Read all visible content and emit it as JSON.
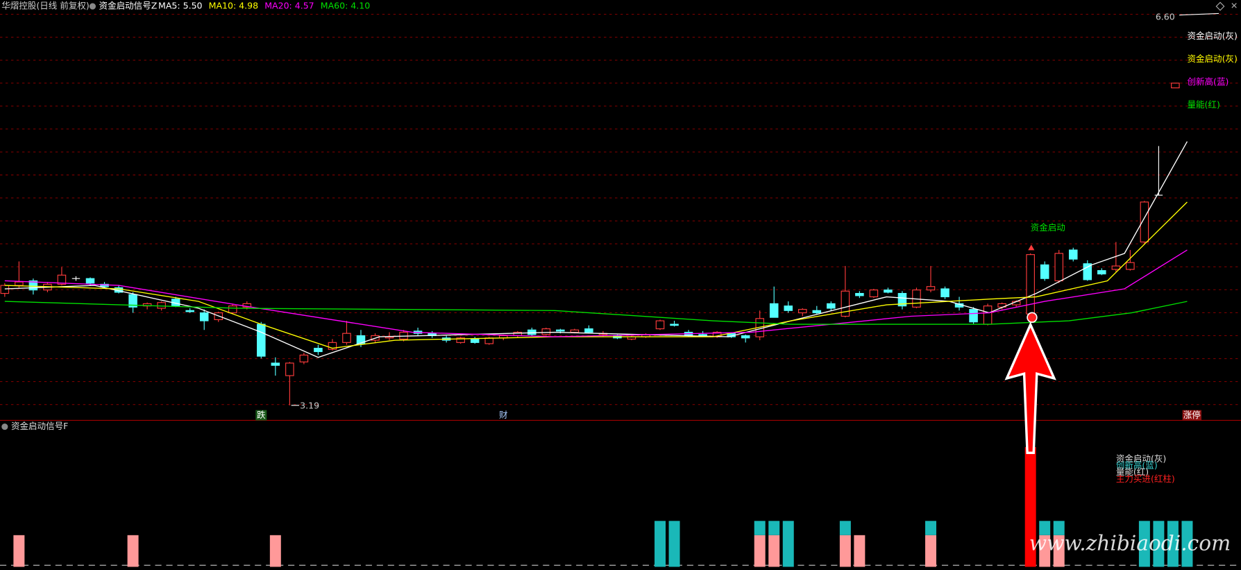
{
  "header": {
    "title": "华熠控股(日线 前复权)"
  },
  "chart_data": [
    {
      "type": "candlestick",
      "title": "资金启动信号Z",
      "ylim": [
        3.19,
        6.6
      ],
      "up_color": "#ff3c3c",
      "down_color": "#54ffff",
      "candles": [
        [
          4.17,
          4.26,
          4.14,
          4.24
        ],
        [
          4.24,
          4.45,
          4.22,
          4.27
        ],
        [
          4.28,
          4.3,
          4.16,
          4.2
        ],
        [
          4.2,
          4.27,
          4.18,
          4.25
        ],
        [
          4.25,
          4.4,
          4.24,
          4.33
        ],
        [
          4.3,
          4.32,
          4.28,
          4.3
        ],
        [
          4.3,
          4.31,
          4.24,
          4.26
        ],
        [
          4.25,
          4.27,
          4.22,
          4.23
        ],
        [
          4.22,
          4.24,
          4.17,
          4.18
        ],
        [
          4.16,
          4.18,
          4.0,
          4.05
        ],
        [
          4.06,
          4.09,
          4.03,
          4.08
        ],
        [
          4.04,
          4.1,
          4.02,
          4.09
        ],
        [
          4.12,
          4.14,
          4.05,
          4.06
        ],
        [
          4.02,
          4.04,
          4.0,
          4.01
        ],
        [
          4.0,
          4.03,
          3.85,
          3.93
        ],
        [
          3.94,
          4.01,
          3.92,
          4.0
        ],
        [
          4.0,
          4.08,
          3.99,
          4.06
        ],
        [
          4.05,
          4.1,
          4.03,
          4.08
        ],
        [
          3.9,
          3.92,
          3.6,
          3.62
        ],
        [
          3.56,
          3.61,
          3.45,
          3.54
        ],
        [
          3.45,
          3.57,
          3.19,
          3.56
        ],
        [
          3.57,
          3.65,
          3.55,
          3.63
        ],
        [
          3.69,
          3.72,
          3.63,
          3.66
        ],
        [
          3.68,
          3.77,
          3.67,
          3.74
        ],
        [
          3.74,
          3.93,
          3.72,
          3.82
        ],
        [
          3.8,
          3.85,
          3.7,
          3.73
        ],
        [
          3.76,
          3.82,
          3.74,
          3.8
        ],
        [
          3.78,
          3.83,
          3.76,
          3.79
        ],
        [
          3.77,
          3.85,
          3.75,
          3.83
        ],
        [
          3.84,
          3.87,
          3.8,
          3.82
        ],
        [
          3.82,
          3.84,
          3.78,
          3.8
        ],
        [
          3.78,
          3.8,
          3.74,
          3.76
        ],
        [
          3.74,
          3.79,
          3.73,
          3.78
        ],
        [
          3.77,
          3.79,
          3.73,
          3.74
        ],
        [
          3.73,
          3.79,
          3.72,
          3.78
        ],
        [
          3.78,
          3.81,
          3.76,
          3.8
        ],
        [
          3.8,
          3.84,
          3.78,
          3.83
        ],
        [
          3.85,
          3.87,
          3.8,
          3.81
        ],
        [
          3.81,
          3.87,
          3.8,
          3.86
        ],
        [
          3.85,
          3.86,
          3.82,
          3.84
        ],
        [
          3.83,
          3.86,
          3.82,
          3.85
        ],
        [
          3.86,
          3.89,
          3.82,
          3.83
        ],
        [
          3.81,
          3.84,
          3.79,
          3.82
        ],
        [
          3.8,
          3.81,
          3.77,
          3.78
        ],
        [
          3.77,
          3.8,
          3.76,
          3.79
        ],
        [
          3.79,
          3.82,
          3.78,
          3.81
        ],
        [
          3.86,
          3.94,
          3.85,
          3.93
        ],
        [
          3.9,
          3.93,
          3.88,
          3.89
        ],
        [
          3.83,
          3.85,
          3.79,
          3.8
        ],
        [
          3.81,
          3.84,
          3.79,
          3.8
        ],
        [
          3.79,
          3.84,
          3.78,
          3.83
        ],
        [
          3.82,
          3.83,
          3.78,
          3.79
        ],
        [
          3.8,
          3.81,
          3.74,
          3.78
        ],
        [
          3.79,
          4.02,
          3.76,
          3.95
        ],
        [
          4.08,
          4.23,
          3.96,
          3.96
        ],
        [
          4.06,
          4.1,
          4.0,
          4.02
        ],
        [
          4.0,
          4.04,
          3.97,
          4.03
        ],
        [
          4.02,
          4.06,
          3.99,
          4.0
        ],
        [
          4.08,
          4.1,
          4.02,
          4.04
        ],
        [
          3.97,
          4.41,
          3.96,
          4.19
        ],
        [
          4.17,
          4.19,
          4.13,
          4.15
        ],
        [
          4.14,
          4.21,
          4.13,
          4.2
        ],
        [
          4.2,
          4.22,
          4.17,
          4.18
        ],
        [
          4.17,
          4.19,
          4.03,
          4.06
        ],
        [
          4.05,
          4.22,
          4.04,
          4.2
        ],
        [
          4.2,
          4.41,
          4.18,
          4.23
        ],
        [
          4.21,
          4.23,
          4.12,
          4.14
        ],
        [
          4.08,
          4.14,
          4.02,
          4.05
        ],
        [
          4.03,
          4.05,
          3.9,
          3.92
        ],
        [
          3.9,
          4.08,
          3.89,
          4.06
        ],
        [
          4.05,
          4.09,
          4.03,
          4.08
        ],
        [
          4.07,
          4.11,
          4.05,
          4.1
        ],
        [
          3.99,
          4.52,
          3.97,
          4.51
        ],
        [
          4.42,
          4.45,
          4.28,
          4.3
        ],
        [
          4.28,
          4.55,
          4.26,
          4.52
        ],
        [
          4.55,
          4.57,
          4.45,
          4.47
        ],
        [
          4.43,
          4.46,
          4.28,
          4.29
        ],
        [
          4.37,
          4.39,
          4.33,
          4.34
        ],
        [
          4.38,
          4.62,
          4.36,
          4.41
        ],
        [
          4.38,
          4.55,
          4.37,
          4.44
        ],
        [
          4.62,
          4.98,
          4.6,
          4.97
        ],
        [
          5.03,
          5.46,
          5.03,
          5.03
        ]
      ],
      "series": [
        {
          "name": "MA5: 5.50",
          "color": "#ffffff",
          "x": [
            0,
            6.3,
            13.6,
            18,
            22,
            26.3,
            38.6,
            50.8,
            55.2,
            61.9,
            66.3,
            69.1,
            72.4,
            76.3,
            78.6,
            83
          ],
          "values": [
            4.21,
            4.24,
            4.04,
            3.83,
            3.61,
            3.79,
            3.83,
            3.79,
            3.93,
            4.14,
            4.1,
            4.0,
            4.17,
            4.42,
            4.52,
            5.5
          ]
        },
        {
          "name": "MA10: 4.98",
          "color": "#ffff00",
          "x": [
            0,
            8,
            13.6,
            18,
            23,
            27.4,
            38.6,
            49.7,
            55.2,
            61.9,
            69.1,
            72.4,
            77.4,
            83
          ],
          "values": [
            4.24,
            4.21,
            4.1,
            3.9,
            3.69,
            3.76,
            3.79,
            3.79,
            3.93,
            4.07,
            4.12,
            4.14,
            4.28,
            4.97
          ]
        },
        {
          "name": "MA20: 4.57",
          "color": "#ff00ff",
          "x": [
            0,
            8,
            16.3,
            28.6,
            38.6,
            52.4,
            58,
            63.6,
            69.1,
            73,
            78.6,
            83
          ],
          "values": [
            4.28,
            4.24,
            4.07,
            3.83,
            3.79,
            3.83,
            3.9,
            3.97,
            4.0,
            4.1,
            4.21,
            4.55
          ]
        },
        {
          "name": "MA60: 4.10",
          "color": "#00e000",
          "x": [
            0,
            16.3,
            38.6,
            49.7,
            55.2,
            69.1,
            74.7,
            79.1,
            83
          ],
          "values": [
            4.1,
            4.04,
            4.02,
            3.93,
            3.9,
            3.9,
            3.93,
            4.0,
            4.1
          ]
        }
      ],
      "high_label": "6.60",
      "low_label": "3.19",
      "signal_label": "资金启动",
      "legend": [
        {
          "name": "资金启动(灰)",
          "color": "#ffffff"
        },
        {
          "name": "资金启动(灰)",
          "color": "#ffff00"
        },
        {
          "name": "创新高(蓝)",
          "color": "#ff00ff"
        },
        {
          "name": "量能(红)",
          "color": "#00e000"
        }
      ],
      "markers": [
        "跌",
        "财",
        "涨停"
      ]
    },
    {
      "type": "bar",
      "title": "资金启动信号F",
      "ylim": [
        0,
        4
      ],
      "x": [
        1,
        9,
        19,
        46,
        47,
        53,
        54,
        55,
        59,
        60,
        65,
        72,
        73,
        74,
        80,
        81,
        82,
        83
      ],
      "series": [
        {
          "color": "#ff9999",
          "values": [
            1,
            1,
            1,
            null,
            null,
            1,
            1,
            null,
            1,
            1,
            1,
            null,
            1,
            1,
            null,
            null,
            null,
            null
          ]
        },
        {
          "color": "#1ab8b8",
          "stack": true,
          "values": [
            null,
            null,
            null,
            1.45,
            1.45,
            0.45,
            0.45,
            1.45,
            0.45,
            null,
            0.45,
            null,
            0.45,
            0.45,
            1.45,
            1.45,
            1.45,
            1.45
          ]
        },
        {
          "color": "#ff0000",
          "values": [
            null,
            null,
            null,
            null,
            null,
            null,
            null,
            null,
            null,
            null,
            null,
            3.78,
            null,
            null,
            null,
            null,
            null,
            null
          ]
        }
      ],
      "legend": [
        {
          "name": "资金启动(灰)",
          "color": "#dddddd"
        },
        {
          "name": "创新高(蓝)",
          "color": "#33cccc"
        },
        {
          "name": "量能(红)",
          "color": "#dddddd"
        },
        {
          "name": "主力买进(红柱)",
          "color": "#ff2020"
        }
      ]
    }
  ],
  "watermark": "www.zhibiaodi.com"
}
